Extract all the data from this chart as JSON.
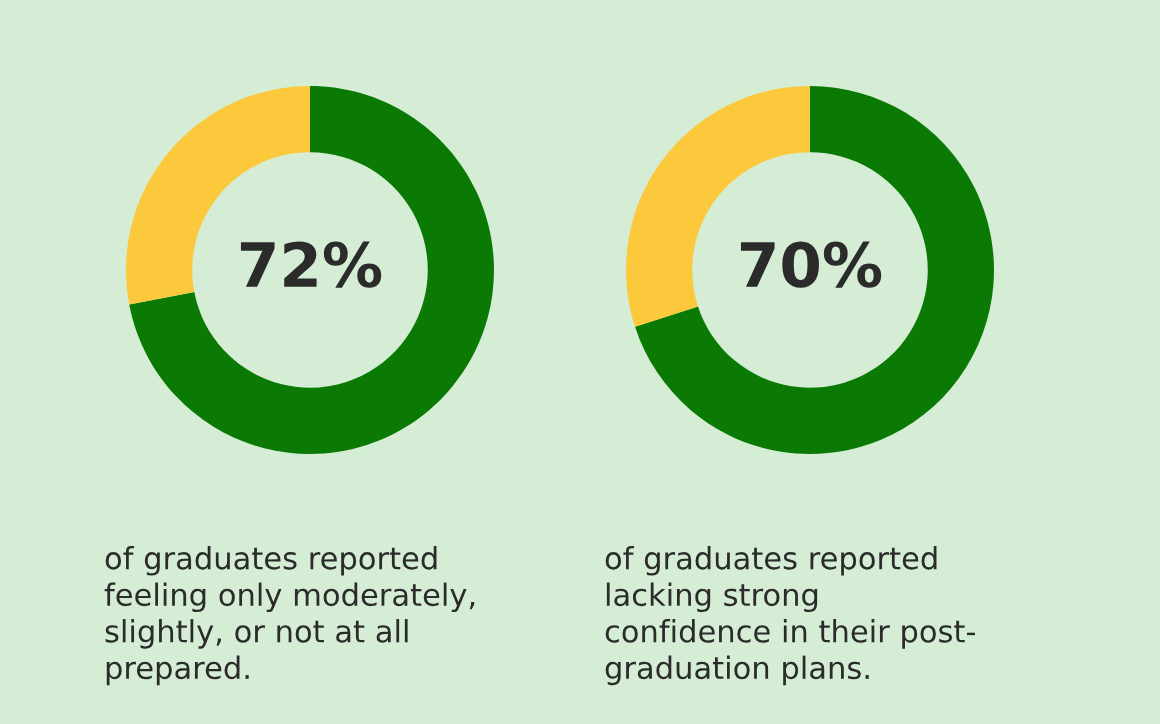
{
  "chart_data": [
    {
      "type": "donut",
      "categories": [
        null,
        null
      ],
      "values": [
        72,
        28
      ],
      "colors": [
        "#0a7a05",
        "#fdc93c"
      ],
      "annotations": [
        "72%",
        "of graduates reported\nfeeling only moderately,\nslightly, or not at all\nprepared."
      ]
    },
    {
      "type": "donut",
      "categories": [
        null,
        null
      ],
      "values": [
        70,
        30
      ],
      "colors": [
        "#0a7a05",
        "#fdc93c"
      ],
      "annotations": [
        "70%",
        "of graduates reported\nlacking strong\nconfidence in their post-\ngraduation plans."
      ]
    }
  ]
}
